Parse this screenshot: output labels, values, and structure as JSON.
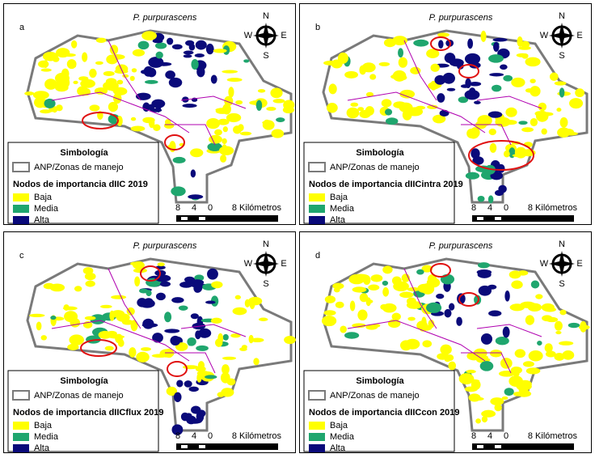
{
  "panels": [
    {
      "label": "a",
      "species": "P. purpurascens",
      "compass": [
        "N",
        "E",
        "S",
        "W"
      ],
      "legend_title": "Simbología",
      "boundary_label": "ANP/Zonas de manejo",
      "nodes_title": "Nodos de importancia dIIC 2019",
      "classes": [
        {
          "name": "Baja",
          "color": "#ffff00"
        },
        {
          "name": "Media",
          "color": "#1fa66e"
        },
        {
          "name": "Alta",
          "color": "#0a0a7a"
        }
      ],
      "scale": [
        "8",
        "4",
        "0",
        "8 Kilómetros"
      ]
    },
    {
      "label": "b",
      "species": "P. purpurascens",
      "compass": [
        "N",
        "E",
        "S",
        "W"
      ],
      "legend_title": "Simbología",
      "boundary_label": "ANP/Zonas de manejo",
      "nodes_title": "Nodos de importancia dIICintra 2019",
      "classes": [
        {
          "name": "Baja",
          "color": "#ffff00"
        },
        {
          "name": "Media",
          "color": "#1fa66e"
        },
        {
          "name": "Alta",
          "color": "#0a0a7a"
        }
      ],
      "scale": [
        "8",
        "4",
        "0",
        "8 Kilómetros"
      ]
    },
    {
      "label": "c",
      "species": "P. purpurascens",
      "compass": [
        "N",
        "E",
        "S",
        "W"
      ],
      "legend_title": "Simbología",
      "boundary_label": "ANP/Zonas de manejo",
      "nodes_title": "Nodos de importancia dIICflux 2019",
      "classes": [
        {
          "name": "Baja",
          "color": "#ffff00"
        },
        {
          "name": "Media",
          "color": "#1fa66e"
        },
        {
          "name": "Alta",
          "color": "#0a0a7a"
        }
      ],
      "scale": [
        "8",
        "4",
        "0",
        "8 Kilómetros"
      ]
    },
    {
      "label": "d",
      "species": "P. purpurascens",
      "compass": [
        "N",
        "E",
        "S",
        "W"
      ],
      "legend_title": "Simbología",
      "boundary_label": "ANP/Zonas de manejo",
      "nodes_title": "Nodos de importancia dIICcon 2019",
      "classes": [
        {
          "name": "Baja",
          "color": "#ffff00"
        },
        {
          "name": "Media",
          "color": "#1fa66e"
        },
        {
          "name": "Alta",
          "color": "#0a0a7a"
        }
      ],
      "scale": [
        "8",
        "4",
        "0",
        "8 Kilómetros"
      ]
    }
  ]
}
